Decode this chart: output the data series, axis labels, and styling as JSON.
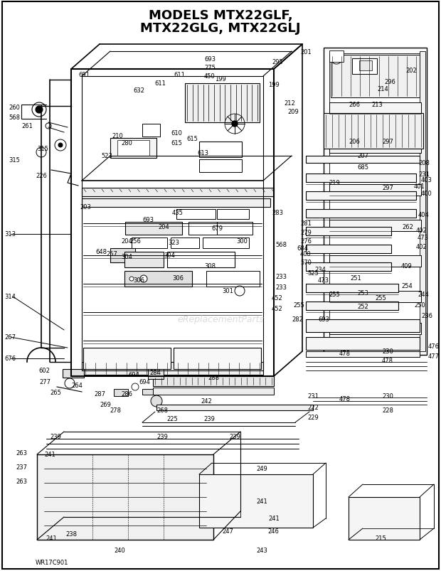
{
  "title_line1": "MODELS MTX22GLF,",
  "title_line2": "MTX22GLG, MTX22GLJ",
  "background_color": "#ffffff",
  "footer_text": "WR17C901",
  "fig_width": 6.2,
  "fig_height": 8.04,
  "dpi": 100
}
